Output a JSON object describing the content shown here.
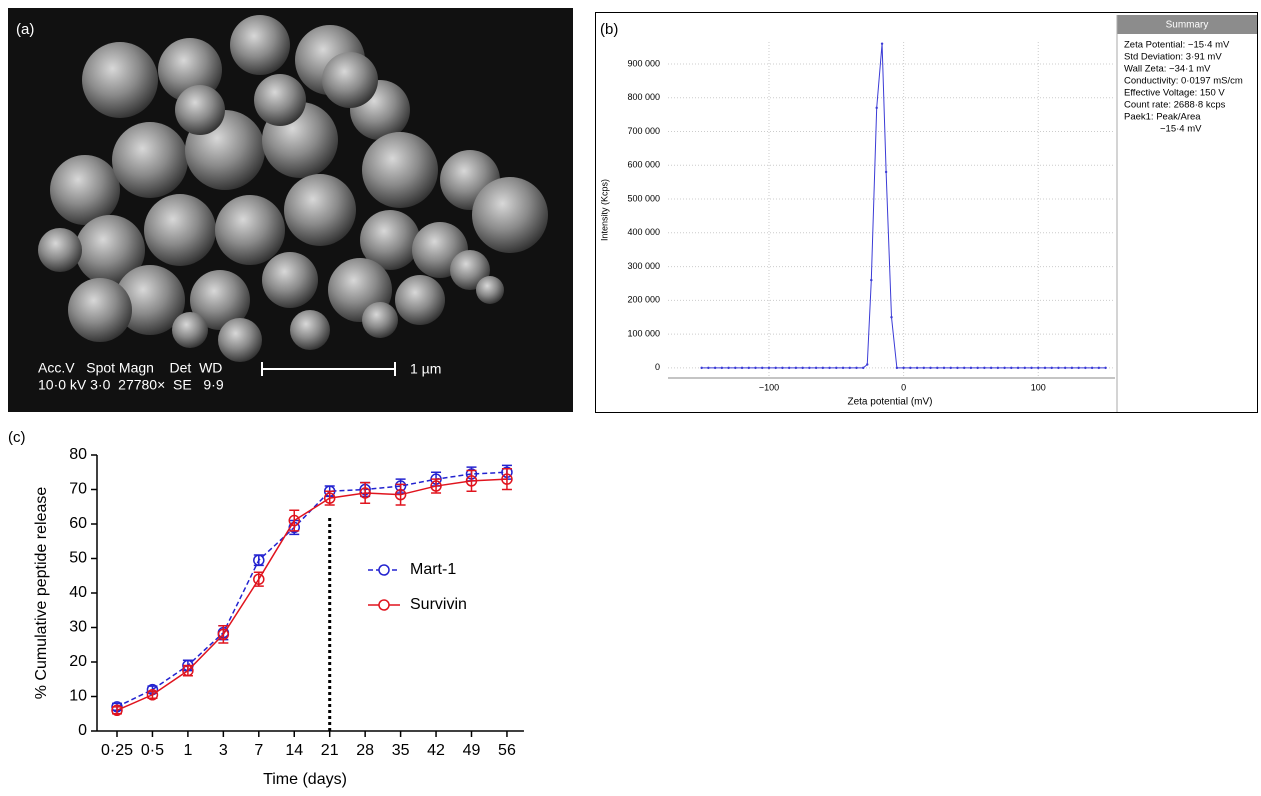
{
  "image_panel": {
    "label": "(a)",
    "caption_lines": [
      "Acc.V   Spot Magn    Det  WD",
      "10·0 kV 3·0  27780×  SE   9·9"
    ],
    "scale_bar": "1 µm"
  },
  "chart_data": [
    {
      "type": "line",
      "label": "(b)",
      "xlabel": "Zeta potential (mV)",
      "ylabel": "Intensity (Kcps)",
      "x": [
        -150,
        -145,
        -140,
        -135,
        -130,
        -125,
        -120,
        -115,
        -110,
        -105,
        -100,
        -95,
        -90,
        -85,
        -80,
        -75,
        -70,
        -65,
        -60,
        -55,
        -50,
        -45,
        -40,
        -35,
        -30,
        -27,
        -24,
        -20,
        -16,
        -13,
        -9,
        -5,
        0,
        5,
        10,
        15,
        20,
        25,
        30,
        35,
        40,
        45,
        50,
        55,
        60,
        65,
        70,
        75,
        80,
        85,
        90,
        95,
        100,
        105,
        110,
        115,
        120,
        125,
        130,
        135,
        140,
        145,
        150
      ],
      "values": [
        0,
        0,
        0,
        0,
        0,
        0,
        0,
        0,
        0,
        0,
        0,
        0,
        0,
        0,
        0,
        0,
        0,
        0,
        0,
        0,
        0,
        0,
        0,
        0,
        0,
        10000,
        260000,
        770000,
        960000,
        580000,
        150000,
        0,
        0,
        0,
        0,
        0,
        0,
        0,
        0,
        0,
        0,
        0,
        0,
        0,
        0,
        0,
        0,
        0,
        0,
        0,
        0,
        0,
        0,
        0,
        0,
        0,
        0,
        0,
        0,
        0,
        0,
        0,
        0
      ],
      "color": "#3b3bd6",
      "xlim": [
        -175,
        157
      ],
      "ylim": [
        -30000,
        965000
      ],
      "xticks": [
        {
          "value": -100,
          "label": "−100"
        },
        0,
        100
      ],
      "yticks": [
        0,
        {
          "value": 100000,
          "label": "100 000"
        },
        {
          "value": 200000,
          "label": "200 000"
        },
        {
          "value": 300000,
          "label": "300 000"
        },
        {
          "value": 400000,
          "label": "400 000"
        },
        {
          "value": 500000,
          "label": "500 000"
        },
        {
          "value": 600000,
          "label": "600 000"
        },
        {
          "value": 700000,
          "label": "700 000"
        },
        {
          "value": 800000,
          "label": "800 000"
        },
        {
          "value": 900000,
          "label": "900 000"
        }
      ],
      "grid": true,
      "summary": {
        "title": "Summary",
        "lines": [
          "Zeta Potential: −15·4 mV",
          "Std Deviation: 3·91 mV",
          "Wall Zeta: −34·1 mV",
          "Conductivity: 0·0197 mS/cm",
          "Effective Voltage: 150 V",
          "Count rate: 2688·8 kcps",
          "Paek1: Peak/Area",
          "−15·4 mV"
        ]
      }
    },
    {
      "type": "line",
      "label": "(c)",
      "xlabel": "Time (days)",
      "ylabel": "% Cumulative peptide release",
      "categories": [
        "0·25",
        "0·5",
        "1",
        "3",
        "7",
        "14",
        "21",
        "28",
        "35",
        "42",
        "49",
        "56"
      ],
      "series": [
        {
          "name": "Mart-1",
          "color": "#2323d0",
          "line_style": "dashed",
          "values": [
            7,
            12,
            19,
            28.5,
            49.5,
            59,
            69.5,
            70,
            71,
            73,
            74.5,
            75
          ],
          "errors": [
            1,
            1,
            1.5,
            2,
            1.5,
            2,
            1.5,
            2,
            2,
            2,
            2,
            2
          ]
        },
        {
          "name": "Survivin",
          "color": "#e0141e",
          "line_style": "solid",
          "values": [
            6,
            10.5,
            17.5,
            28,
            44,
            61,
            67.5,
            69,
            68.5,
            71,
            72.5,
            73
          ],
          "errors": [
            1,
            1,
            1.5,
            2.5,
            2,
            3,
            2,
            3,
            3,
            2,
            3,
            3
          ]
        }
      ],
      "ylim": [
        0,
        80
      ],
      "yticks": [
        0,
        10,
        20,
        30,
        40,
        50,
        60,
        70,
        80
      ],
      "vline": {
        "x": "21",
        "top": 62
      }
    }
  ]
}
